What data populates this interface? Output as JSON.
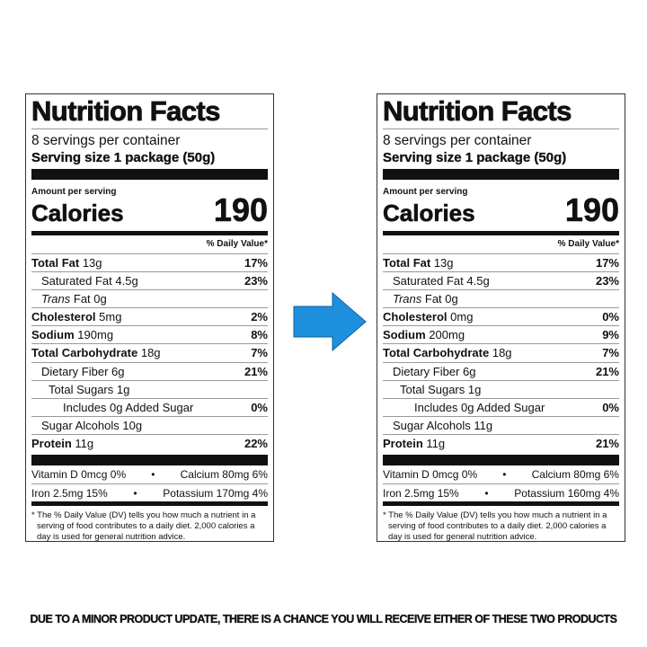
{
  "labels": [
    {
      "title": "Nutrition Facts",
      "servings": "8 servings per container",
      "serving_size": "Serving size 1 package (50g)",
      "amount_per_serving": "Amount per serving",
      "calories_label": "Calories",
      "calories": "190",
      "daily_value_header": "% Daily Value*",
      "nutrients": [
        {
          "name": "Total Fat",
          "amount": "13g",
          "dv": "17%",
          "bold": true,
          "indent": 0
        },
        {
          "name": "Saturated Fat",
          "amount": "4.5g",
          "dv": "23%",
          "bold": false,
          "indent": 1
        },
        {
          "name": "Trans",
          "amount": "Fat 0g",
          "dv": "",
          "bold": false,
          "indent": 1,
          "italic": true
        },
        {
          "name": "Cholesterol",
          "amount": "5mg",
          "dv": "2%",
          "bold": true,
          "indent": 0
        },
        {
          "name": "Sodium",
          "amount": "190mg",
          "dv": "8%",
          "bold": true,
          "indent": 0
        },
        {
          "name": "Total Carbohydrate",
          "amount": "18g",
          "dv": "7%",
          "bold": true,
          "indent": 0
        },
        {
          "name": "Dietary Fiber",
          "amount": "6g",
          "dv": "21%",
          "bold": false,
          "indent": 1
        },
        {
          "name": "Total Sugars",
          "amount": "1g",
          "dv": "",
          "bold": false,
          "indent": 2
        },
        {
          "name": "Includes 0g Added Sugar",
          "amount": "",
          "dv": "0%",
          "bold": false,
          "indent": 3
        },
        {
          "name": "Sugar Alcohols",
          "amount": "10g",
          "dv": "",
          "bold": false,
          "indent": 1
        },
        {
          "name": "Protein",
          "amount": "11g",
          "dv": "22%",
          "bold": true,
          "indent": 0
        }
      ],
      "vitamins": [
        [
          "Vitamin D 0mcg 0%",
          "•",
          "Calcium 80mg 6%"
        ],
        [
          "Iron 2.5mg 15%",
          "•",
          "Potassium 170mg 4%"
        ]
      ],
      "footnote": "* The % Daily Value (DV) tells you how much a nutrient in a serving of food contributes to a daily diet. 2,000 calories a day is used for general nutrition advice."
    },
    {
      "title": "Nutrition Facts",
      "servings": "8 servings per container",
      "serving_size": "Serving size 1 package (50g)",
      "amount_per_serving": "Amount per serving",
      "calories_label": "Calories",
      "calories": "190",
      "daily_value_header": "% Daily Value*",
      "nutrients": [
        {
          "name": "Total Fat",
          "amount": "13g",
          "dv": "17%",
          "bold": true,
          "indent": 0
        },
        {
          "name": "Saturated Fat",
          "amount": "4.5g",
          "dv": "23%",
          "bold": false,
          "indent": 1
        },
        {
          "name": "Trans",
          "amount": "Fat 0g",
          "dv": "",
          "bold": false,
          "indent": 1,
          "italic": true
        },
        {
          "name": "Cholesterol",
          "amount": "0mg",
          "dv": "0%",
          "bold": true,
          "indent": 0
        },
        {
          "name": "Sodium",
          "amount": "200mg",
          "dv": "9%",
          "bold": true,
          "indent": 0
        },
        {
          "name": "Total Carbohydrate",
          "amount": "18g",
          "dv": "7%",
          "bold": true,
          "indent": 0
        },
        {
          "name": "Dietary Fiber",
          "amount": "6g",
          "dv": "21%",
          "bold": false,
          "indent": 1
        },
        {
          "name": "Total Sugars",
          "amount": "1g",
          "dv": "",
          "bold": false,
          "indent": 2
        },
        {
          "name": "Includes 0g Added Sugar",
          "amount": "",
          "dv": "0%",
          "bold": false,
          "indent": 3
        },
        {
          "name": "Sugar Alcohols",
          "amount": "11g",
          "dv": "",
          "bold": false,
          "indent": 1
        },
        {
          "name": "Protein",
          "amount": "11g",
          "dv": "21%",
          "bold": true,
          "indent": 0
        }
      ],
      "vitamins": [
        [
          "Vitamin D 0mcg 0%",
          "•",
          "Calcium 80mg 6%"
        ],
        [
          "Iron 2.5mg 15%",
          "•",
          "Potassium 160mg 4%"
        ]
      ],
      "footnote": "* The % Daily Value (DV) tells you how much a nutrient in a serving of food contributes to a daily diet. 2,000 calories a day is used for general nutrition advice."
    }
  ],
  "arrow": {
    "icon": "arrow-right-icon",
    "color": "#1e8fdc"
  },
  "notice": "DUE TO A MINOR PRODUCT UPDATE, THERE IS A CHANCE YOU WILL RECEIVE EITHER OF THESE TWO PRODUCTS"
}
